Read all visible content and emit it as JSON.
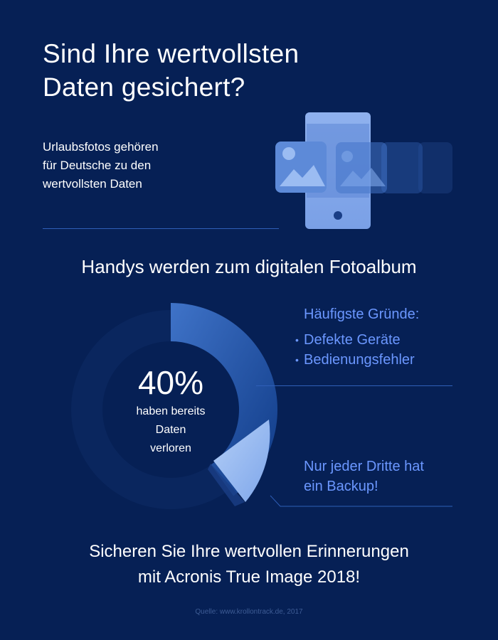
{
  "title": {
    "line1": "Sind Ihre wertvollsten",
    "line2": "Daten gesichert?"
  },
  "intro": {
    "line1": "Urlaubsfotos gehören",
    "line2": "für Deutsche zu den",
    "line3": "wertvollsten Daten"
  },
  "section_heading": "Handys werden zum digitalen Fotoalbum",
  "reasons": {
    "heading": "Häufigste Gründe:",
    "items": [
      "Defekte Geräte",
      "Bedienungsfehler"
    ],
    "bullet": "•"
  },
  "stat": {
    "value": "40%",
    "line1": "haben bereits",
    "line2": "Daten",
    "line3": "verloren",
    "fraction": 0.4
  },
  "backup": {
    "line1": "Nur jeder Dritte hat",
    "line2": "ein Backup!"
  },
  "cta": {
    "line1": "Sicheren Sie Ihre wertvollen Erinnerungen",
    "line2": "mit Acronis True Image 2018!"
  },
  "source": "Quelle: www.krollontrack.de, 2017",
  "colors": {
    "background": "#062055",
    "accent": "#6b97ff",
    "ring": "#0d2a67",
    "segment_gradient_start": "#4b84d8",
    "segment_gradient_end": "#0e3a86",
    "backup_segment": "#9ec0f5",
    "phone": "#8fb1ee"
  },
  "icons": {
    "phone": "smartphone-icon",
    "photo": "photo-gallery-icon",
    "chart": "donut-chart"
  }
}
